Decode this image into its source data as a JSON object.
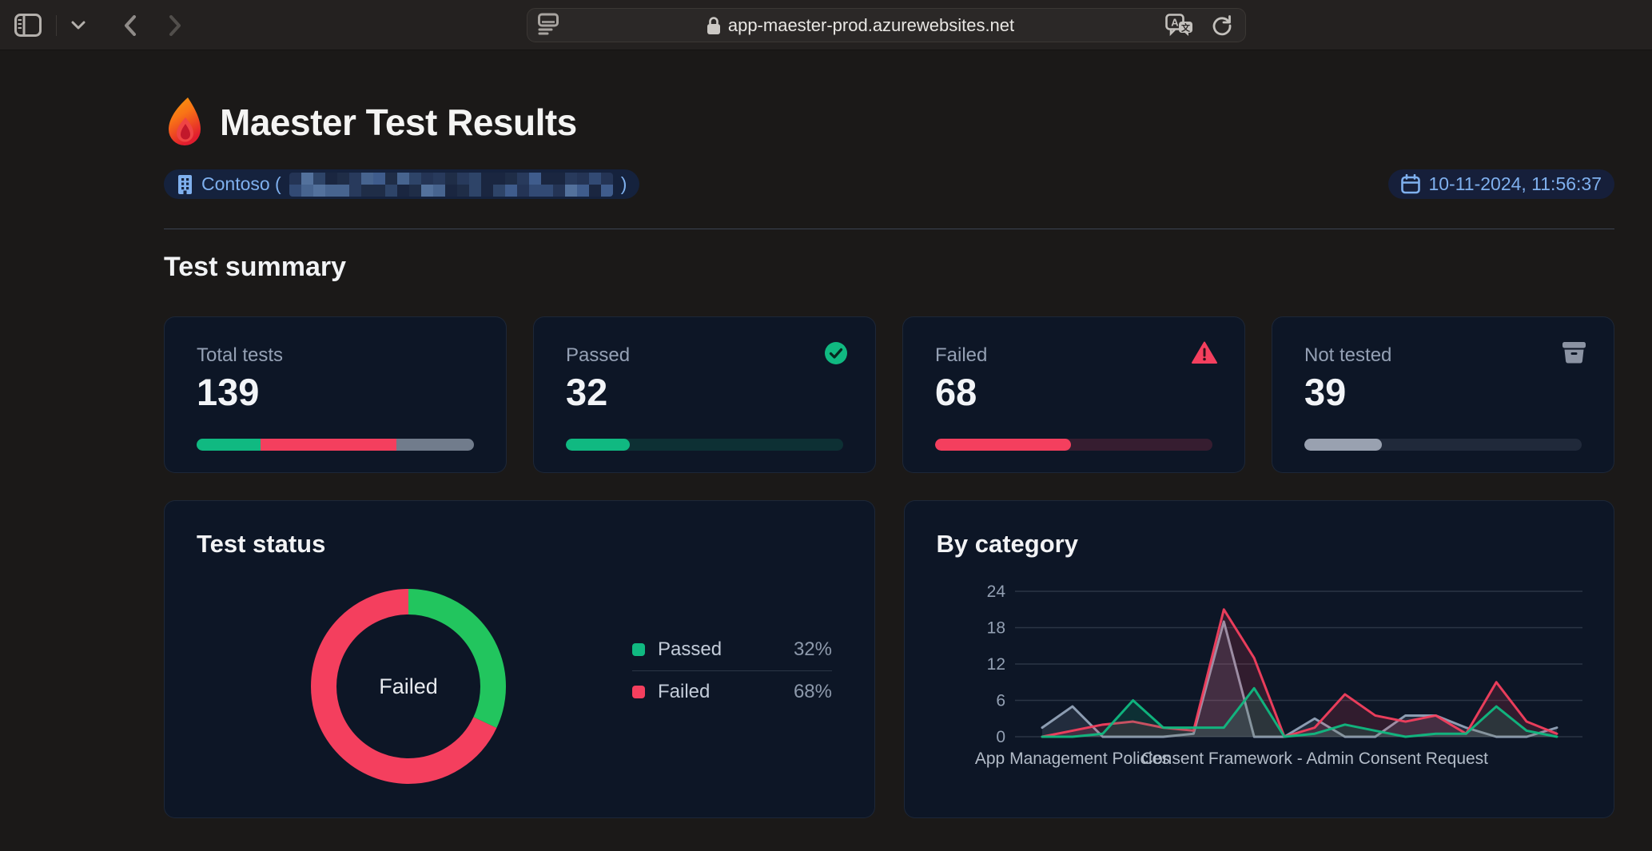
{
  "browser": {
    "url": "app-maester-prod.azurewebsites.net"
  },
  "header": {
    "title": "Maester Test Results",
    "tenant_prefix": "Contoso (",
    "tenant_suffix": ")",
    "tenant_redacted": true,
    "timestamp": "10-11-2024, 11:56:37"
  },
  "summary": {
    "heading": "Test summary",
    "cards": [
      {
        "label": "Total tests",
        "value": "139",
        "icon": null,
        "bar": {
          "segments": [
            {
              "color": "#10b981",
              "pct": 23
            },
            {
              "color": "#f43f5e",
              "pct": 49
            },
            {
              "color": "#717c8c",
              "pct": 28
            }
          ]
        }
      },
      {
        "label": "Passed",
        "value": "32",
        "icon": "check-circle",
        "bar": {
          "fill_pct": 23,
          "fill_color": "#10b981",
          "track_color": "rgba(16,185,129,0.16)"
        }
      },
      {
        "label": "Failed",
        "value": "68",
        "icon": "warning-triangle",
        "bar": {
          "fill_pct": 49,
          "fill_color": "#f43f5e",
          "track_color": "rgba(244,63,94,0.18)"
        }
      },
      {
        "label": "Not tested",
        "value": "39",
        "icon": "archive",
        "bar": {
          "fill_pct": 28,
          "fill_color": "#99a1b0",
          "track_color": "rgba(148,163,184,0.14)"
        }
      }
    ]
  },
  "status_card": {
    "heading": "Test status",
    "center_label": "Failed",
    "donut": {
      "slices": [
        {
          "name": "Passed",
          "pct": 32,
          "color": "#22c55e"
        },
        {
          "name": "Failed",
          "pct": 68,
          "color": "#f43f5e"
        }
      ]
    },
    "legend": [
      {
        "label": "Passed",
        "value": "32%",
        "color": "#10b981"
      },
      {
        "label": "Failed",
        "value": "68%",
        "color": "#f43f5e"
      }
    ]
  },
  "chart_data": {
    "type": "line",
    "title": "By category",
    "ylim": [
      0,
      24
    ],
    "yticks": [
      0,
      6,
      12,
      18,
      24
    ],
    "grid": true,
    "legend_position": "none",
    "x_count": 18,
    "x_labels": [
      {
        "index": 1,
        "text": "App Management Policies"
      },
      {
        "index": 9,
        "text": "Consent Framework - Admin Consent Request"
      }
    ],
    "series": [
      {
        "name": "Not tested",
        "color": "#94a3b8",
        "values": [
          1.5,
          5,
          0,
          0,
          0,
          0.5,
          19,
          0,
          0,
          3,
          0,
          0,
          3.5,
          3.5,
          1.5,
          0,
          0,
          1.5
        ]
      },
      {
        "name": "Failed",
        "color": "#f43f5e",
        "values": [
          0,
          1,
          2,
          2.5,
          1.5,
          1,
          21,
          13,
          0,
          1.5,
          7,
          3.5,
          2.5,
          3.5,
          0.5,
          9,
          2.5,
          0.5
        ]
      },
      {
        "name": "Passed",
        "color": "#10b981",
        "values": [
          0,
          0,
          0.5,
          6,
          1.5,
          1.5,
          1.5,
          8,
          0,
          0.5,
          2,
          1,
          0,
          0.5,
          0.5,
          5,
          1,
          0
        ]
      }
    ]
  }
}
